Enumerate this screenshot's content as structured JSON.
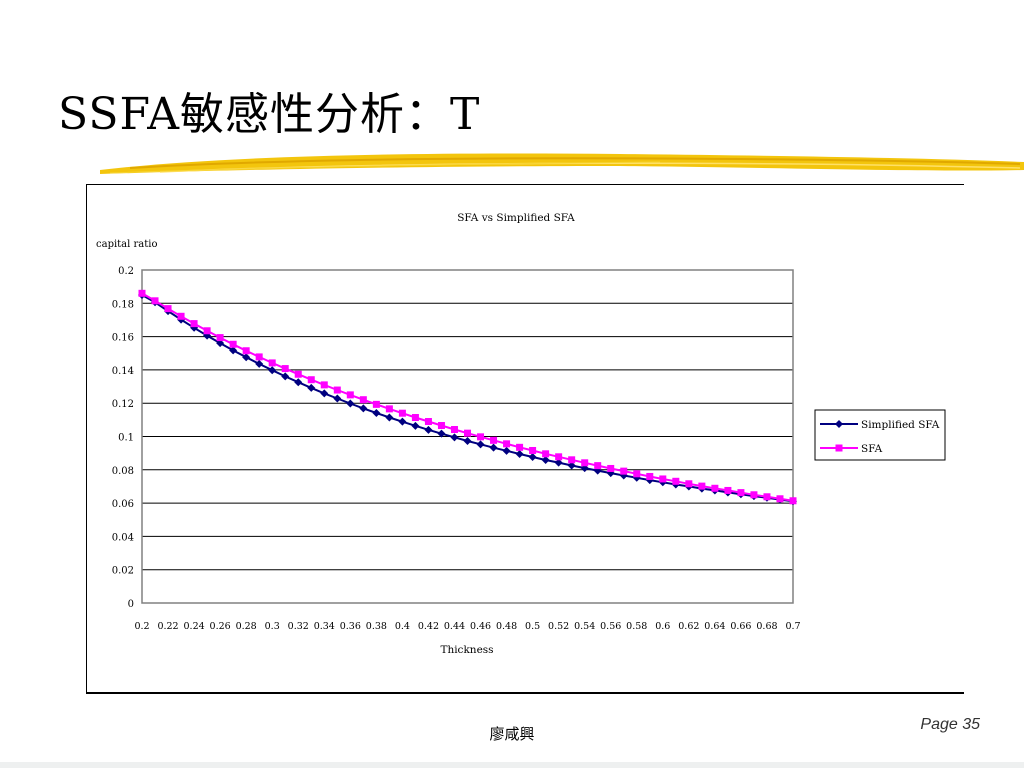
{
  "slide": {
    "title": "SSFA敏感性分析：T",
    "author": "廖咸興",
    "page": "Page 35"
  },
  "colors": {
    "brush": "#f2c200",
    "simplified": "#000080",
    "sfa": "#ff00ff",
    "grid": "#000000",
    "plot_border": "#808080"
  },
  "chart_data": {
    "type": "line",
    "title": "SFA vs Simplified SFA",
    "xlabel": "Thickness",
    "ylabel": "capital ratio",
    "ylim": [
      0,
      0.2
    ],
    "yticks": [
      "0.2",
      "0.18",
      "0.16",
      "0.14",
      "0.12",
      "0.1",
      "0.08",
      "0.06",
      "0.04",
      "0.02",
      "0"
    ],
    "xticks": [
      "0.2",
      "0.22",
      "0.24",
      "0.26",
      "0.28",
      "0.3",
      "0.32",
      "0.34",
      "0.36",
      "0.38",
      "0.4",
      "0.42",
      "0.44",
      "0.46",
      "0.48",
      "0.5",
      "0.52",
      "0.54",
      "0.56",
      "0.58",
      "0.6",
      "0.62",
      "0.64",
      "0.66",
      "0.68",
      "0.7"
    ],
    "x": [
      0.2,
      0.21,
      0.22,
      0.23,
      0.24,
      0.25,
      0.26,
      0.27,
      0.28,
      0.29,
      0.3,
      0.31,
      0.32,
      0.33,
      0.34,
      0.35,
      0.36,
      0.37,
      0.38,
      0.39,
      0.4,
      0.41,
      0.42,
      0.43,
      0.44,
      0.45,
      0.46,
      0.47,
      0.48,
      0.49,
      0.5,
      0.51,
      0.52,
      0.53,
      0.54,
      0.55,
      0.56,
      0.57,
      0.58,
      0.59,
      0.6,
      0.61,
      0.62,
      0.63,
      0.64,
      0.65,
      0.66,
      0.67,
      0.68,
      0.69,
      0.7
    ],
    "series": [
      {
        "name": "Simplified SFA",
        "marker": "diamond",
        "values": [
          0.185,
          0.1806,
          0.1753,
          0.1702,
          0.1653,
          0.1606,
          0.1561,
          0.1517,
          0.1476,
          0.1436,
          0.1398,
          0.1361,
          0.1326,
          0.1292,
          0.1259,
          0.1228,
          0.1198,
          0.1169,
          0.1141,
          0.1114,
          0.1089,
          0.1064,
          0.104,
          0.1017,
          0.0995,
          0.0973,
          0.0953,
          0.0933,
          0.0914,
          0.0895,
          0.0877,
          0.0859,
          0.0843,
          0.0826,
          0.081,
          0.0795,
          0.078,
          0.0766,
          0.0752,
          0.0738,
          0.0725,
          0.0712,
          0.07,
          0.0687,
          0.0676,
          0.0664,
          0.0653,
          0.0642,
          0.0632,
          0.0621,
          0.0611
        ]
      },
      {
        "name": "SFA",
        "marker": "square",
        "values": [
          0.186,
          0.1815,
          0.1768,
          0.1722,
          0.1678,
          0.1635,
          0.1594,
          0.1554,
          0.1515,
          0.1478,
          0.1442,
          0.1408,
          0.1374,
          0.1341,
          0.131,
          0.1279,
          0.125,
          0.1221,
          0.1193,
          0.1166,
          0.114,
          0.1114,
          0.109,
          0.1066,
          0.1042,
          0.102,
          0.0998,
          0.0977,
          0.0956,
          0.0935,
          0.0916,
          0.0896,
          0.0878,
          0.086,
          0.0842,
          0.0825,
          0.0808,
          0.0792,
          0.0776,
          0.076,
          0.0745,
          0.0731,
          0.0716,
          0.0702,
          0.0689,
          0.0676,
          0.0663,
          0.065,
          0.0638,
          0.0626,
          0.0614
        ]
      }
    ],
    "legend": "right",
    "grid": true
  }
}
